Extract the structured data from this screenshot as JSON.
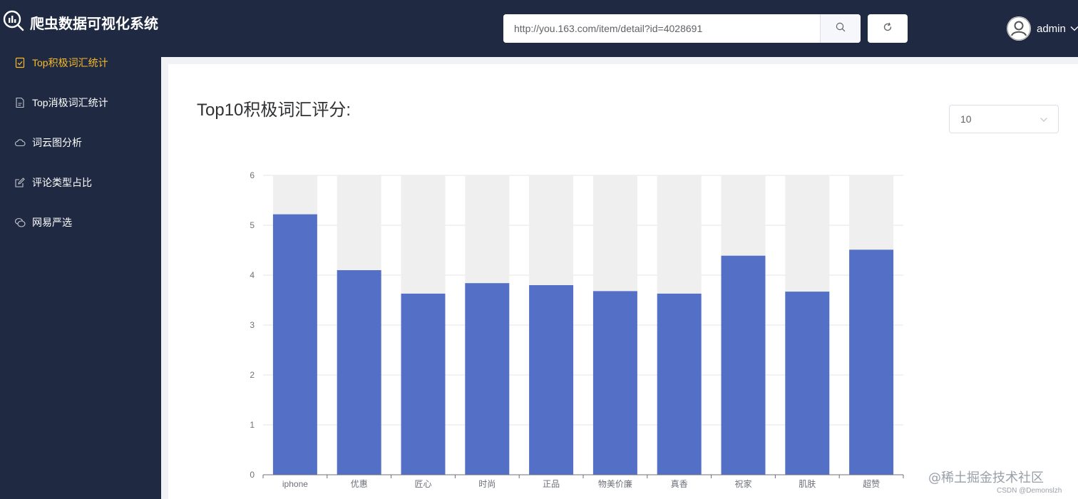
{
  "app": {
    "title": "爬虫数据可视化系统"
  },
  "header": {
    "url_value": "http://you.163.com/item/detail?id=4028691",
    "search_icon": "search-icon",
    "refresh_icon": "refresh-icon",
    "user": {
      "name": "admin"
    }
  },
  "sidebar": {
    "items": [
      {
        "label": "Top积极词汇统计",
        "icon": "checked-document-icon",
        "active": true
      },
      {
        "label": "Top消极词汇统计",
        "icon": "document-icon",
        "active": false
      },
      {
        "label": "词云图分析",
        "icon": "cloud-icon",
        "active": false
      },
      {
        "label": "评论类型占比",
        "icon": "edit-icon",
        "active": false
      },
      {
        "label": "网易严选",
        "icon": "chat-icon",
        "active": false
      }
    ]
  },
  "main": {
    "title": "Top10积极词汇评分:",
    "select_value": "10"
  },
  "colors": {
    "accent": "#f7ba2a",
    "bar": "#5470c6",
    "bar_background": "#efefef",
    "sidebar_bg": "#1f2942"
  },
  "chart_data": {
    "type": "bar",
    "categories": [
      "iphone",
      "优惠",
      "匠心",
      "时尚",
      "正品",
      "物美价廉",
      "真香",
      "祝家",
      "肌肤",
      "超赞"
    ],
    "values": [
      5.22,
      4.1,
      3.63,
      3.84,
      3.8,
      3.68,
      3.63,
      4.39,
      3.67,
      4.51
    ],
    "ylim": [
      0,
      6
    ],
    "yticks": [
      0,
      1,
      2,
      3,
      4,
      5,
      6
    ],
    "grid": true,
    "background_bars": true
  },
  "watermark": {
    "line1": "@稀土掘金技术社区",
    "line2": "CSDN @Demonslzh"
  }
}
